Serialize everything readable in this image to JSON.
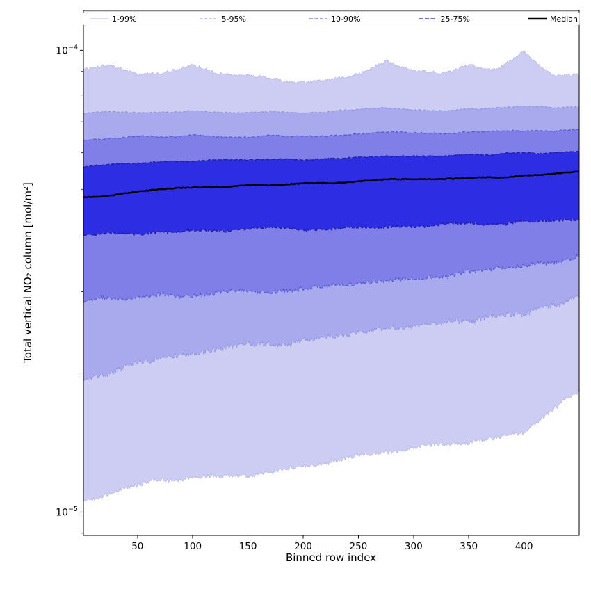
{
  "chart_data": {
    "type": "area",
    "subtype": "percentile-fan",
    "title": "",
    "xlabel": "Binned row index",
    "ylabel": "Total vertical NO₂ column [mol/m²]",
    "x_axis": {
      "min": 1,
      "max": 450,
      "ticks": [
        50,
        100,
        150,
        200,
        250,
        300,
        350,
        400
      ]
    },
    "y_axis": {
      "scale": "log",
      "min": 8.9e-06,
      "max": 0.000122,
      "ticks": [
        {
          "value": 0.0001,
          "base": "10",
          "exp": "−4"
        },
        {
          "value": 1e-05,
          "base": "10",
          "exp": "−5"
        }
      ]
    },
    "legend_position": "top",
    "x": [
      1,
      25,
      50,
      75,
      100,
      125,
      150,
      175,
      200,
      225,
      250,
      275,
      300,
      325,
      350,
      375,
      400,
      425,
      450
    ],
    "percentiles": {
      "p99": [
        9.1e-05,
        9.3e-05,
        8.9e-05,
        9e-05,
        9.2e-05,
        8.9e-05,
        8.8e-05,
        8.7e-05,
        8.5e-05,
        8.7e-05,
        8.8e-05,
        9.4e-05,
        9e-05,
        8.9e-05,
        9.2e-05,
        9.1e-05,
        9.9e-05,
        8.9e-05,
        8.9e-05
      ],
      "p95": [
        7.3e-05,
        7.35e-05,
        7.3e-05,
        7.35e-05,
        7.4e-05,
        7.35e-05,
        7.3e-05,
        7.35e-05,
        7.3e-05,
        7.35e-05,
        7.45e-05,
        7.5e-05,
        7.45e-05,
        7.4e-05,
        7.45e-05,
        7.5e-05,
        7.55e-05,
        7.5e-05,
        7.55e-05
      ],
      "p90": [
        6.4e-05,
        6.45e-05,
        6.5e-05,
        6.5e-05,
        6.55e-05,
        6.5e-05,
        6.5e-05,
        6.55e-05,
        6.5e-05,
        6.55e-05,
        6.6e-05,
        6.65e-05,
        6.6e-05,
        6.6e-05,
        6.65e-05,
        6.7e-05,
        6.7e-05,
        6.7e-05,
        6.75e-05
      ],
      "p75": [
        5.6e-05,
        5.65e-05,
        5.7e-05,
        5.75e-05,
        5.75e-05,
        5.8e-05,
        5.8e-05,
        5.8e-05,
        5.8e-05,
        5.85e-05,
        5.85e-05,
        5.9e-05,
        5.9e-05,
        5.9e-05,
        5.95e-05,
        5.95e-05,
        6e-05,
        6e-05,
        6.05e-05
      ],
      "median": [
        4.8e-05,
        4.85e-05,
        4.95e-05,
        5e-05,
        5.05e-05,
        5.05e-05,
        5.1e-05,
        5.1e-05,
        5.15e-05,
        5.15e-05,
        5.2e-05,
        5.25e-05,
        5.25e-05,
        5.25e-05,
        5.3e-05,
        5.3e-05,
        5.35e-05,
        5.4e-05,
        5.45e-05
      ],
      "p25": [
        3.95e-05,
        4e-05,
        4e-05,
        4.05e-05,
        4.05e-05,
        4.05e-05,
        4.1e-05,
        4.1e-05,
        4.1e-05,
        4.1e-05,
        4.15e-05,
        4.15e-05,
        4.15e-05,
        4.2e-05,
        4.2e-05,
        4.2e-05,
        4.25e-05,
        4.25e-05,
        4.3e-05
      ],
      "p10": [
        2.85e-05,
        2.9e-05,
        2.9e-05,
        2.95e-05,
        2.95e-05,
        3e-05,
        3e-05,
        3e-05,
        3.05e-05,
        3.1e-05,
        3.1e-05,
        3.15e-05,
        3.2e-05,
        3.25e-05,
        3.3e-05,
        3.35e-05,
        3.4e-05,
        3.45e-05,
        3.55e-05
      ],
      "p5": [
        1.95e-05,
        2e-05,
        2.1e-05,
        2.15e-05,
        2.2e-05,
        2.25e-05,
        2.3e-05,
        2.3e-05,
        2.35e-05,
        2.4e-05,
        2.45e-05,
        2.5e-05,
        2.5e-05,
        2.55e-05,
        2.6e-05,
        2.65e-05,
        2.7e-05,
        2.8e-05,
        2.95e-05
      ],
      "p1": [
        1.05e-05,
        1.1e-05,
        1.15e-05,
        1.17e-05,
        1.18e-05,
        1.19e-05,
        1.2e-05,
        1.22e-05,
        1.25e-05,
        1.28e-05,
        1.32e-05,
        1.35e-05,
        1.38e-05,
        1.4e-05,
        1.42e-05,
        1.45e-05,
        1.5e-05,
        1.65e-05,
        1.85e-05
      ]
    },
    "bands": [
      {
        "label": "1-99%",
        "lower": "p1",
        "upper": "p99",
        "fill": "#cdcdf4",
        "edge": "#b7b7e9",
        "dash": "",
        "edge_width": 0.8
      },
      {
        "label": "5-95%",
        "lower": "p5",
        "upper": "p95",
        "fill": "#a9a9ed",
        "edge": "#8f8fe2",
        "dash": "4,2.5",
        "edge_width": 1.0
      },
      {
        "label": "10-90%",
        "lower": "p10",
        "upper": "p90",
        "fill": "#7f7fe7",
        "edge": "#5353d6",
        "dash": "5,2.5",
        "edge_width": 1.1
      },
      {
        "label": "25-75%",
        "lower": "p25",
        "upper": "p75",
        "fill": "#2d2de3",
        "edge": "#1d1d9b",
        "dash": "6,2.5",
        "edge_width": 1.2
      }
    ],
    "median_style": {
      "label": "Median",
      "color": "#000000",
      "width": 2.4
    }
  }
}
